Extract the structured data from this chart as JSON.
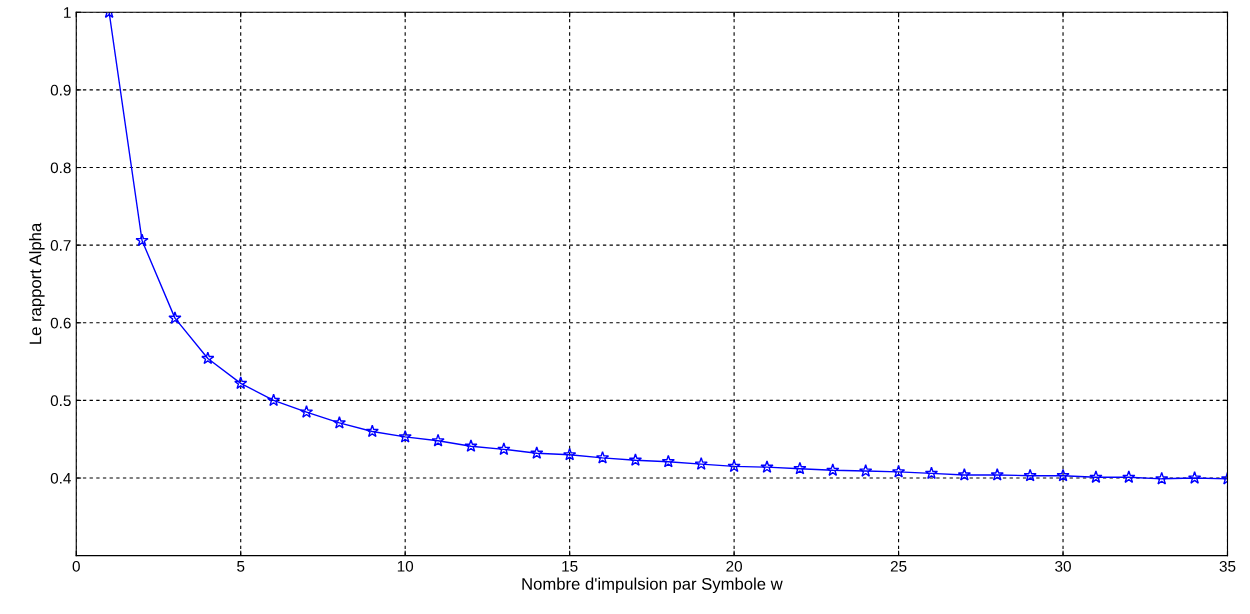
{
  "chart_data": {
    "type": "line",
    "xlabel": "Nombre d'impulsion par Symbole w",
    "ylabel": "Le rapport Alpha",
    "x": [
      1,
      2,
      3,
      4,
      5,
      6,
      7,
      8,
      9,
      10,
      11,
      12,
      13,
      14,
      15,
      16,
      17,
      18,
      19,
      20,
      21,
      22,
      23,
      24,
      25,
      26,
      27,
      28,
      29,
      30,
      31,
      32,
      33,
      34,
      35
    ],
    "series": [
      {
        "color": "#0000ff",
        "values": [
          1.0,
          0.706,
          0.606,
          0.554,
          0.522,
          0.5,
          0.485,
          0.471,
          0.46,
          0.453,
          0.448,
          0.441,
          0.437,
          0.432,
          0.43,
          0.426,
          0.423,
          0.421,
          0.418,
          0.415,
          0.414,
          0.412,
          0.41,
          0.409,
          0.408,
          0.406,
          0.404,
          0.404,
          0.403,
          0.403,
          0.401,
          0.401,
          0.399,
          0.4,
          0.399
        ]
      }
    ],
    "xlim": [
      0,
      35
    ],
    "xticks": [
      0,
      5,
      10,
      15,
      20,
      25,
      30,
      35
    ],
    "ylim": [
      0.3,
      1
    ],
    "yticks": [
      0.4,
      0.5,
      0.6,
      0.7,
      0.8,
      0.9,
      1
    ],
    "grid": true,
    "marker": "star",
    "line_style": "solid",
    "legend": false
  }
}
